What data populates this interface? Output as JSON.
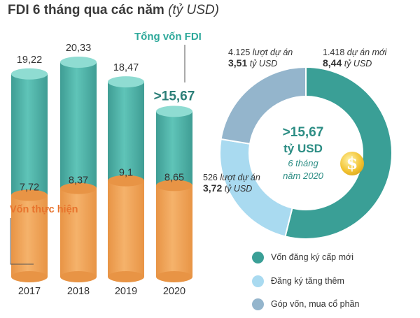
{
  "title": {
    "main": "FDI 6 tháng qua các năm",
    "unit": "(tỷ USD)"
  },
  "colors": {
    "teal": "#5fc4b8",
    "teal_dark": "#3f9d94",
    "orange": "#f5b26b",
    "orange_dark": "#e89445",
    "title_teal": "#2ea99b",
    "label_orange": "#e8732c",
    "donut_new": "#3a9f96",
    "donut_add": "#a9daf0",
    "donut_contrib": "#94b5cc"
  },
  "labels": {
    "total_fdi": "Tổng vốn FDI",
    "disbursed": "Vốn thực hiện"
  },
  "chart_data": [
    {
      "type": "bar",
      "categories": [
        "2017",
        "2018",
        "2019",
        "2020"
      ],
      "series": [
        {
          "name": "Tổng vốn FDI",
          "values": [
            19.22,
            20.33,
            18.47,
            15.67
          ],
          "labels": [
            "19,22",
            "20,33",
            "18,47",
            ">15,67"
          ]
        },
        {
          "name": "Vốn thực hiện",
          "values": [
            7.72,
            8.37,
            9.1,
            8.65
          ],
          "labels": [
            "7,72",
            "8,37",
            "9,1",
            "8,65"
          ]
        }
      ],
      "ylim": [
        0,
        21
      ]
    },
    {
      "type": "pie",
      "center": {
        "value": ">15,67",
        "unit": "tỷ USD",
        "period_1": "6 tháng",
        "period_2": "năm 2020"
      },
      "slices": [
        {
          "name": "Vốn đăng ký cấp mới",
          "value": 8.44,
          "projects": "1.418",
          "projects_text": "dự án mới",
          "value_text": "8,44",
          "unit": "tỷ USD"
        },
        {
          "name": "Đăng ký tăng thêm",
          "value": 3.72,
          "projects": "526",
          "projects_text": "lượt dự án",
          "value_text": "3,72",
          "unit": "tỷ USD"
        },
        {
          "name": "Góp vốn, mua cổ phần",
          "value": 3.51,
          "projects": "4.125",
          "projects_text": "lượt dự án",
          "value_text": "3,51",
          "unit": "tỷ USD"
        }
      ]
    }
  ]
}
